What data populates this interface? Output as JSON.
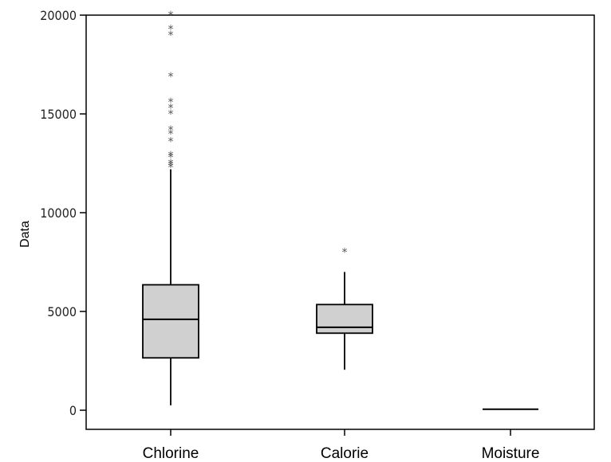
{
  "chart_data": {
    "type": "boxplot",
    "title": "",
    "xlabel": "",
    "ylabel": "Data",
    "ylim": [
      -1000,
      20000
    ],
    "yticks": [
      0,
      5000,
      10000,
      15000,
      20000
    ],
    "categories": [
      "Chlorine",
      "Calorie",
      "Moisture"
    ],
    "boxes": [
      {
        "name": "Chlorine",
        "whisker_low": 250,
        "q1": 2650,
        "median": 4600,
        "q3": 6350,
        "whisker_high": 12200,
        "outliers": [
          12300,
          12400,
          12500,
          12800,
          12900,
          13600,
          14000,
          14200,
          15000,
          15300,
          15600,
          16900,
          19000,
          19300,
          20000
        ]
      },
      {
        "name": "Calorie",
        "whisker_low": 2050,
        "q1": 3900,
        "median": 4200,
        "q3": 5350,
        "whisker_high": 7000,
        "outliers": [
          8000
        ]
      },
      {
        "name": "Moisture",
        "whisker_low": 50,
        "q1": 50,
        "median": 50,
        "q3": 50,
        "whisker_high": 50,
        "outliers": []
      }
    ],
    "box_fill": "#d0d0d0",
    "line_color": "#000000",
    "outlier_color": "#555555",
    "outlier_marker": "*"
  }
}
